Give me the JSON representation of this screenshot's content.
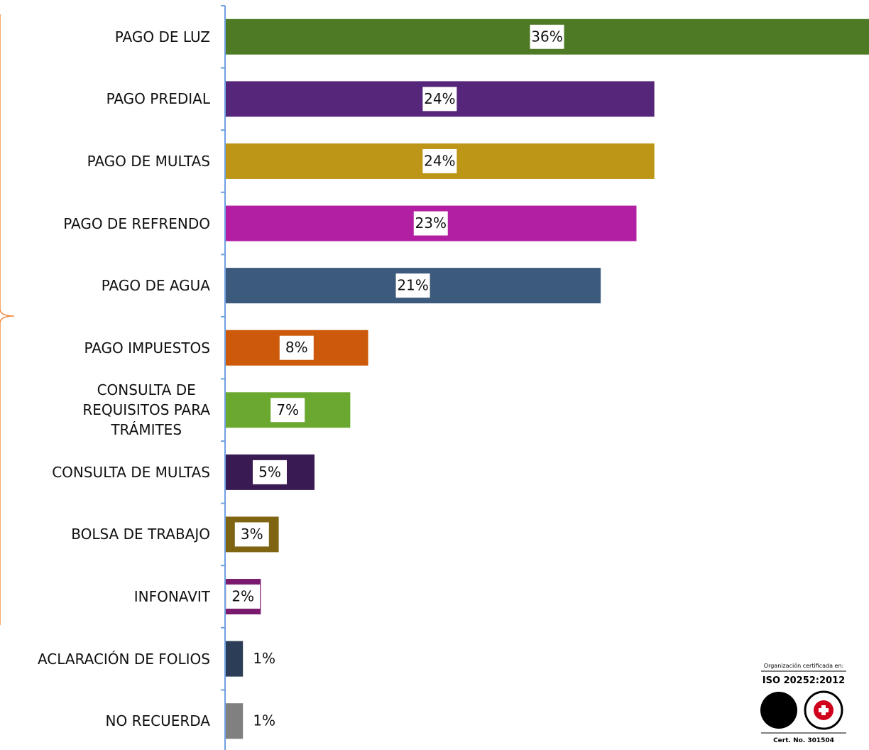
{
  "chart_data": {
    "type": "barh",
    "categories": [
      "PAGO DE LUZ",
      "PAGO PREDIAL",
      "PAGO DE MULTAS",
      "PAGO DE REFRENDO",
      "PAGO DE AGUA",
      "PAGO IMPUESTOS",
      "CONSULTA DE\nREQUISITOS PARA\nTRÁMITES",
      "CONSULTA DE MULTAS",
      "BOLSA DE TRABAJO",
      "INFONAVIT",
      "ACLARACIÓN DE FOLIOS",
      "NO RECUERDA"
    ],
    "values": [
      36,
      24,
      24,
      23,
      21,
      8,
      7,
      5,
      3,
      2,
      1,
      1
    ],
    "value_labels": [
      "36%",
      "24%",
      "24%",
      "23%",
      "21%",
      "8%",
      "7%",
      "5%",
      "3%",
      "2%",
      "1%",
      "1%"
    ],
    "colors": [
      "#4e7a26",
      "#55267a",
      "#bd9517",
      "#b21fa3",
      "#3c5a7c",
      "#cc5a0a",
      "#6aa82f",
      "#3a1a52",
      "#7f6512",
      "#7a1a6e",
      "#2c3e57",
      "#808080"
    ],
    "xlim": [
      0,
      36
    ],
    "annotations": [
      "Organización certificada en:",
      "ISO 20252:2012",
      "Cert. No. 301504"
    ]
  }
}
